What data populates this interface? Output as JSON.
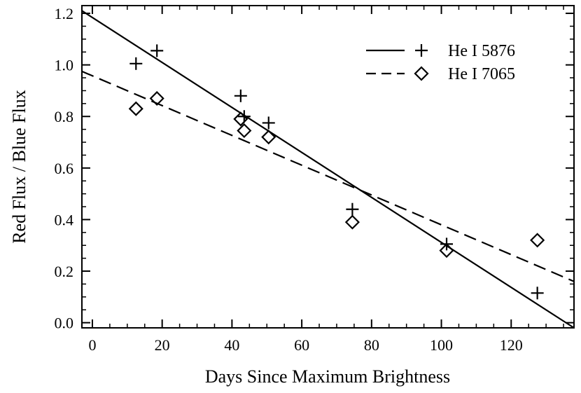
{
  "chart_data": {
    "type": "scatter",
    "xlabel": "Days Since Maximum Brightness",
    "ylabel": "Red Flux / Blue Flux",
    "xlim": [
      -3,
      138
    ],
    "ylim": [
      -0.02,
      1.23
    ],
    "xticks": [
      "0",
      "20",
      "40",
      "60",
      "80",
      "100",
      "120"
    ],
    "yticks": [
      "0.0",
      "0.2",
      "0.4",
      "0.6",
      "0.8",
      "1.0",
      "1.2"
    ],
    "grid": false,
    "legend_position": "top-right",
    "series": [
      {
        "name": "He I 5876",
        "marker": "plus",
        "line_style": "solid",
        "points": [
          [
            12.5,
            1.005
          ],
          [
            18.5,
            1.055
          ],
          [
            42.5,
            0.88
          ],
          [
            43.5,
            0.8
          ],
          [
            50.5,
            0.775
          ],
          [
            74.5,
            0.44
          ],
          [
            101.5,
            0.305
          ],
          [
            127.5,
            0.115
          ]
        ],
        "fit": [
          [
            -3,
            1.21
          ],
          [
            138,
            -0.02
          ]
        ]
      },
      {
        "name": "He I 7065",
        "marker": "diamond",
        "line_style": "dashed",
        "points": [
          [
            12.5,
            0.83
          ],
          [
            18.5,
            0.87
          ],
          [
            42.5,
            0.79
          ],
          [
            43.5,
            0.745
          ],
          [
            50.5,
            0.72
          ],
          [
            74.5,
            0.39
          ],
          [
            101.5,
            0.28
          ],
          [
            127.5,
            0.32
          ]
        ],
        "fit": [
          [
            -3,
            0.975
          ],
          [
            138,
            0.16
          ]
        ]
      }
    ]
  }
}
